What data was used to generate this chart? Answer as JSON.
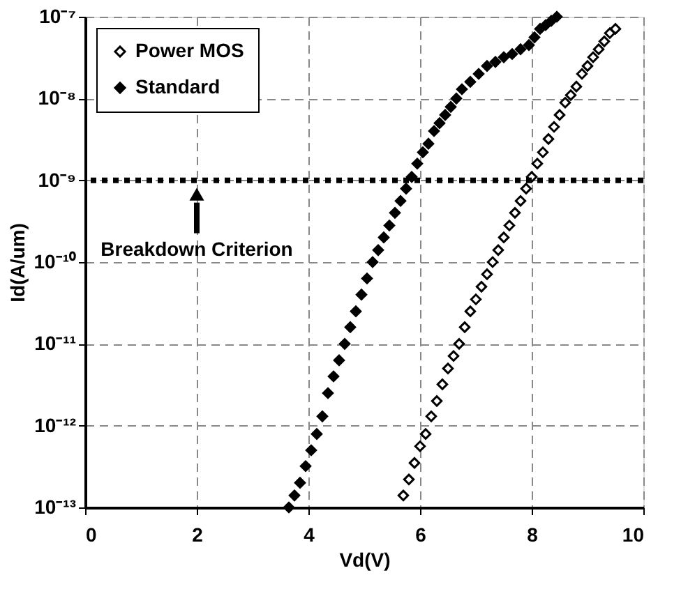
{
  "chart_data": {
    "type": "scatter",
    "xlabel": "Vd(V)",
    "ylabel": "Id(A/um)",
    "log": "y",
    "grid": true,
    "marker": "diamond",
    "legend": "top left",
    "xlim": [
      0,
      10
    ],
    "xticks": [
      0,
      2,
      4,
      6,
      8,
      10
    ],
    "ylim": [
      1e-13,
      1e-07
    ],
    "yticks": [
      {
        "value": 1e-13,
        "label": "10⁻¹³"
      },
      {
        "value": 1e-12,
        "label": "10⁻¹²"
      },
      {
        "value": 1e-11,
        "label": "10⁻¹¹"
      },
      {
        "value": 1e-10,
        "label": "10⁻¹⁰"
      },
      {
        "value": 1e-09,
        "label": "10⁻⁹"
      },
      {
        "value": 1e-08,
        "label": "10⁻⁸"
      },
      {
        "value": 1e-07,
        "label": "10⁻⁷"
      }
    ],
    "ref_lines": [
      {
        "axis": "y",
        "value": 1e-09,
        "color": "#000000",
        "line_style": "dotted",
        "label": "Breakdown Criterion"
      }
    ],
    "series": [
      {
        "name": "Power MOS",
        "color": "#000000",
        "x": [
          5.7,
          5.8,
          5.9,
          6.0,
          6.1,
          6.2,
          6.3,
          6.4,
          6.5,
          6.6,
          6.7,
          6.8,
          6.9,
          7.0,
          7.1,
          7.2,
          7.3,
          7.4,
          7.5,
          7.6,
          7.7,
          7.8,
          7.9,
          8.0,
          8.1,
          8.2,
          8.3,
          8.4,
          8.5,
          8.6,
          8.7,
          8.8,
          8.9,
          9.0,
          9.1,
          9.2,
          9.3,
          9.4,
          9.5
        ],
        "values": [
          1.4e-13,
          2.2e-13,
          3.5e-13,
          5.6e-13,
          7.9e-13,
          1.3e-12,
          2e-12,
          3.2e-12,
          5e-12,
          7.1e-12,
          1e-11,
          1.6e-11,
          2.5e-11,
          3.5e-11,
          5e-11,
          7.1e-11,
          1e-10,
          1.4e-10,
          2e-10,
          2.8e-10,
          4e-10,
          5.6e-10,
          7.9e-10,
          1.1e-09,
          1.6e-09,
          2.2e-09,
          3.2e-09,
          4.5e-09,
          6.3e-09,
          8.9e-09,
          1.1e-08,
          1.4e-08,
          2e-08,
          2.5e-08,
          3.2e-08,
          4e-08,
          5e-08,
          6.3e-08,
          7.1e-08
        ]
      },
      {
        "name": "Standard",
        "color": "#000000",
        "x": [
          3.65,
          3.75,
          3.85,
          3.95,
          4.05,
          4.15,
          4.25,
          4.35,
          4.45,
          4.55,
          4.65,
          4.75,
          4.85,
          4.95,
          5.05,
          5.15,
          5.25,
          5.35,
          5.45,
          5.55,
          5.65,
          5.75,
          5.85,
          5.95,
          6.05,
          6.15,
          6.25,
          6.35,
          6.45,
          6.55,
          6.65,
          6.75,
          6.9,
          7.05,
          7.2,
          7.35,
          7.5,
          7.65,
          7.8,
          7.95,
          8.05,
          8.15,
          8.25,
          8.35,
          8.45
        ],
        "values": [
          1e-13,
          1.4e-13,
          2e-13,
          3.2e-13,
          5e-13,
          7.9e-13,
          1.3e-12,
          2.5e-12,
          4e-12,
          6.3e-12,
          1e-11,
          1.6e-11,
          2.5e-11,
          4e-11,
          6.3e-11,
          1e-10,
          1.4e-10,
          2e-10,
          2.8e-10,
          4e-10,
          5.6e-10,
          7.9e-10,
          1.1e-09,
          1.6e-09,
          2.2e-09,
          2.8e-09,
          4e-09,
          5e-09,
          6.3e-09,
          7.9e-09,
          1e-08,
          1.3e-08,
          1.6e-08,
          2e-08,
          2.5e-08,
          2.8e-08,
          3.2e-08,
          3.5e-08,
          4e-08,
          4.5e-08,
          5.6e-08,
          7.1e-08,
          7.9e-08,
          8.9e-08,
          1e-07
        ]
      }
    ]
  }
}
